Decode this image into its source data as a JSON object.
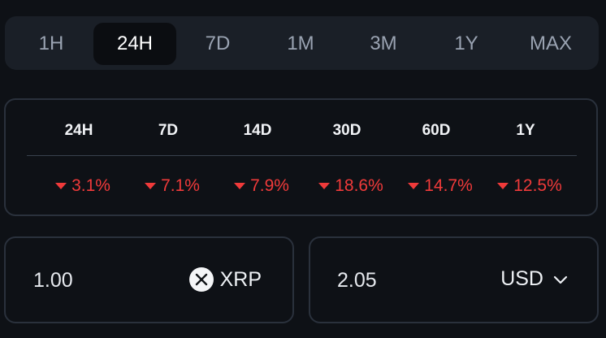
{
  "range_tabs": [
    {
      "label": "1H",
      "active": false
    },
    {
      "label": "24H",
      "active": true
    },
    {
      "label": "7D",
      "active": false
    },
    {
      "label": "1M",
      "active": false
    },
    {
      "label": "3M",
      "active": false
    },
    {
      "label": "1Y",
      "active": false
    },
    {
      "label": "MAX",
      "active": false
    }
  ],
  "performance": {
    "periods": [
      "24H",
      "7D",
      "14D",
      "30D",
      "60D",
      "1Y"
    ],
    "changes": [
      "3.1%",
      "7.1%",
      "7.9%",
      "18.6%",
      "14.7%",
      "12.5%"
    ],
    "direction_icon": "caret-down-icon",
    "negative_color": "#f03a3a"
  },
  "converter": {
    "crypto_amount": "1.00",
    "crypto_symbol": "XRP",
    "crypto_icon": "xrp-logo-icon",
    "fiat_amount": "2.05",
    "fiat_currency": "USD",
    "fiat_dropdown_icon": "chevron-down-icon"
  }
}
